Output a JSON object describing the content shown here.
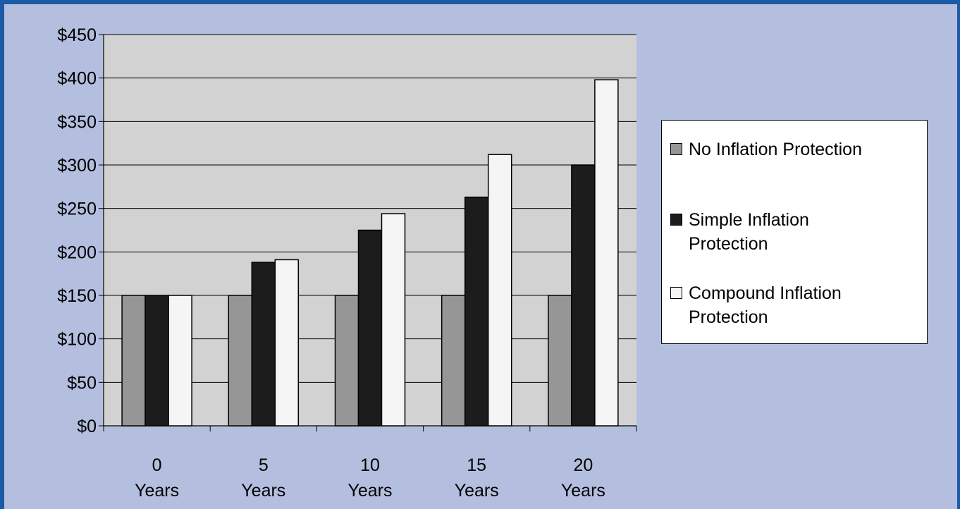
{
  "chart_data": {
    "type": "bar",
    "categories": [
      {
        "line1": "0",
        "line2": "Years"
      },
      {
        "line1": "5",
        "line2": "Years"
      },
      {
        "line1": "10",
        "line2": "Years"
      },
      {
        "line1": "15",
        "line2": "Years"
      },
      {
        "line1": "20",
        "line2": "Years"
      }
    ],
    "series": [
      {
        "name": "No Inflation Protection",
        "color": "#969696",
        "values": [
          150,
          150,
          150,
          150,
          150
        ]
      },
      {
        "name": "Simple Inflation Protection",
        "color": "#1c1c1c",
        "values": [
          150,
          188,
          225,
          263,
          300
        ]
      },
      {
        "name": "Compound Inflation Protection",
        "color": "#f5f5f5",
        "values": [
          150,
          191,
          244,
          312,
          398
        ]
      }
    ],
    "ylim": [
      0,
      450
    ],
    "y_ticks": [
      "$0",
      "$50",
      "$100",
      "$150",
      "$200",
      "$250",
      "$300",
      "$350",
      "$400",
      "$450"
    ],
    "grid": true,
    "legend_position": "right",
    "plot_background": "#d2d2d2",
    "page_background": "#b4bfdf",
    "frame_color": "#1a5aa6"
  }
}
